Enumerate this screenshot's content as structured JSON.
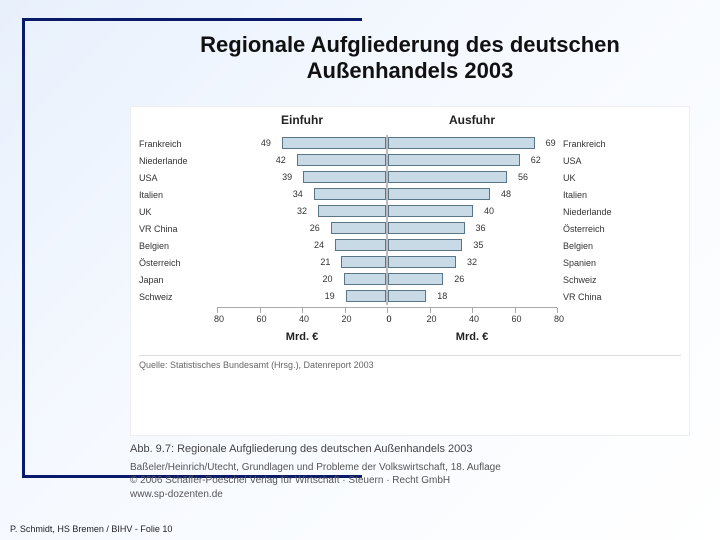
{
  "slide": {
    "title": "Regionale Aufgliederung des deutschen Außenhandels 2003",
    "footer": "P. Schmidt, HS Bremen / BIHV - Folie 10"
  },
  "chart": {
    "type": "diverging-bar",
    "axis_max": 80,
    "axis_ticks": [
      80,
      60,
      40,
      20,
      0
    ],
    "axis_label_left": "Mrd. €",
    "axis_label_right": "Mrd. €",
    "bar_color_fill": "#c8dae6",
    "bar_color_border": "#5a7488",
    "background_color": "#ffffff",
    "left": {
      "header": "Einfuhr",
      "bars": [
        {
          "label": "Frankreich",
          "value": 49
        },
        {
          "label": "Niederlande",
          "value": 42
        },
        {
          "label": "USA",
          "value": 39
        },
        {
          "label": "Italien",
          "value": 34
        },
        {
          "label": "UK",
          "value": 32
        },
        {
          "label": "VR China",
          "value": 26
        },
        {
          "label": "Belgien",
          "value": 24
        },
        {
          "label": "Österreich",
          "value": 21
        },
        {
          "label": "Japan",
          "value": 20
        },
        {
          "label": "Schweiz",
          "value": 19
        }
      ]
    },
    "right": {
      "header": "Ausfuhr",
      "bars": [
        {
          "label": "Frankreich",
          "value": 69
        },
        {
          "label": "USA",
          "value": 62
        },
        {
          "label": "UK",
          "value": 56
        },
        {
          "label": "Italien",
          "value": 48
        },
        {
          "label": "Niederlande",
          "value": 40
        },
        {
          "label": "Österreich",
          "value": 36
        },
        {
          "label": "Belgien",
          "value": 35
        },
        {
          "label": "Spanien",
          "value": 32
        },
        {
          "label": "Schweiz",
          "value": 26
        },
        {
          "label": "VR China",
          "value": 18
        }
      ]
    },
    "source_line": "Quelle: Statistisches Bundesamt (Hrsg.), Datenreport 2003"
  },
  "caption": {
    "fig": "Abb. 9.7: Regionale Aufgliederung des deutschen Außenhandels 2003",
    "line1": "Baßeler/Heinrich/Utecht, Grundlagen und Probleme der Volkswirtschaft, 18. Auflage",
    "line2": "© 2006 Schäffer-Poeschel Verlag für Wirtschaft · Steuern · Recht GmbH",
    "line3": "www.sp-dozenten.de"
  }
}
